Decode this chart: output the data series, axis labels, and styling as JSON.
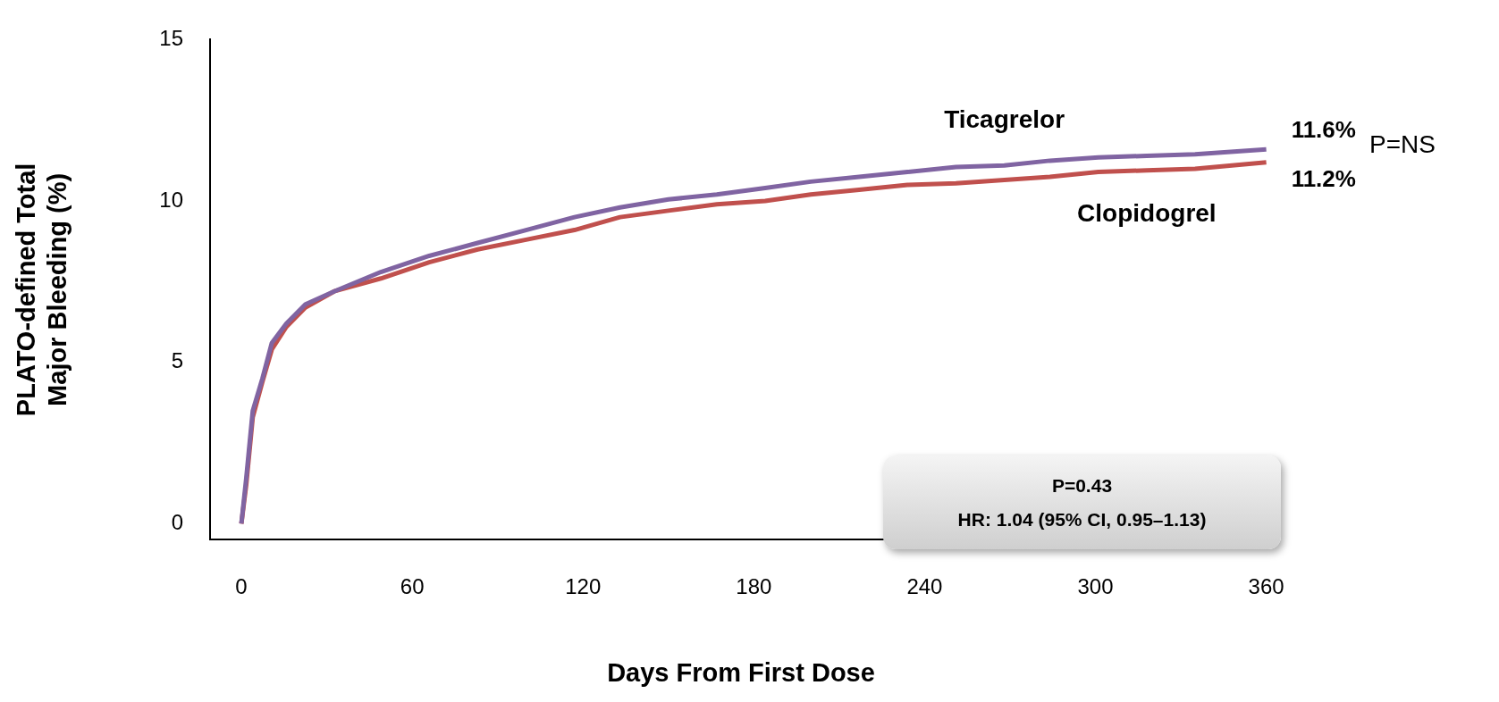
{
  "chart_data": {
    "type": "line",
    "xlabel": "Days From First Dose",
    "ylabel": "PLATO-defined Total\nMajor Bleeding (%)",
    "x": [
      0,
      1.7,
      4,
      7.4,
      10.7,
      15.8,
      22.5,
      32.6,
      49,
      66,
      83,
      100,
      117,
      133,
      150,
      167,
      184,
      200,
      217,
      234,
      251,
      268,
      284,
      301,
      318,
      335,
      360
    ],
    "series": [
      {
        "name": "Ticagrelor",
        "color": "#8064a2",
        "values": [
          0,
          1.4,
          3.5,
          4.5,
          5.6,
          6.2,
          6.8,
          7.2,
          7.8,
          8.3,
          8.7,
          9.1,
          9.5,
          9.8,
          10.05,
          10.2,
          10.4,
          10.6,
          10.75,
          10.9,
          11.05,
          11.1,
          11.25,
          11.35,
          11.4,
          11.45,
          11.6
        ]
      },
      {
        "name": "Clopidogrel",
        "color": "#c0504d",
        "values": [
          0,
          1.2,
          3.3,
          4.4,
          5.4,
          6.1,
          6.7,
          7.2,
          7.6,
          8.1,
          8.5,
          8.8,
          9.1,
          9.5,
          9.7,
          9.9,
          10.0,
          10.2,
          10.35,
          10.5,
          10.55,
          10.65,
          10.75,
          10.9,
          10.95,
          11.0,
          11.2
        ]
      }
    ],
    "xlim": [
      -11,
      362
    ],
    "xticks": [
      0,
      60,
      120,
      180,
      240,
      300,
      360
    ],
    "ylim": [
      -0.5,
      15
    ],
    "yticks": [
      0,
      5,
      10,
      15
    ],
    "grid": false,
    "legend": false,
    "marker": "none",
    "line_style": "solid",
    "annotations": [
      {
        "text": "11.6%",
        "x": 360,
        "y": 11.6
      },
      {
        "text": "11.2%",
        "x": 360,
        "y": 11.2
      },
      "P=NS",
      "P=0.43",
      "HR: 1.04 (95% CI, 0.95–1.13)"
    ]
  }
}
